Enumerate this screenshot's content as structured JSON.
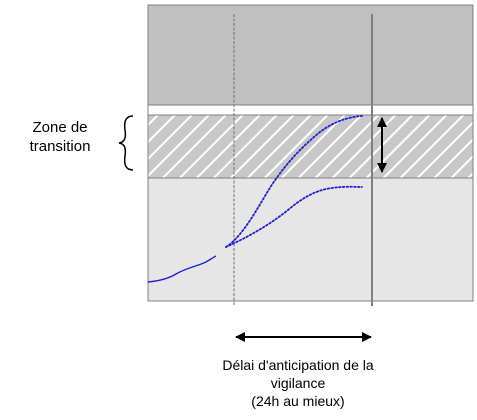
{
  "labels": {
    "zone_line1": "Zone de",
    "zone_line2": "transition",
    "delay_line1": "Délai d'anticipation de la",
    "delay_line2": "vigilance",
    "delay_line3": "(24h au mieux)"
  },
  "colors": {
    "upper_band": "#c0c0c0",
    "lower_band": "#e6e6e6",
    "hatch_background": "#c8c8c8",
    "hatch_lines": "#ffffff",
    "vertical_lines": "#808080",
    "border": "#808080",
    "curve": "#1f1fd6",
    "arrows": "#000000"
  },
  "icons": {
    "brace": "left-curly-brace-icon",
    "horizontal_arrow": "double-headed-horizontal-arrow-icon",
    "vertical_arrow": "double-headed-vertical-arrow-icon"
  }
}
